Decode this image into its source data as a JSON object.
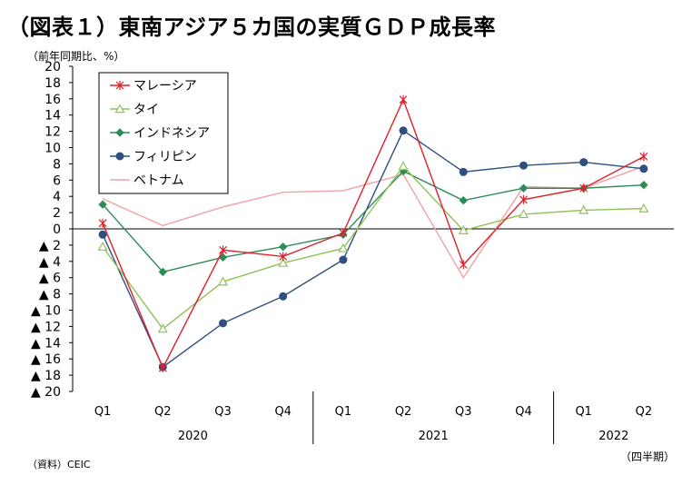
{
  "title": "（図表１）東南アジア５カ国の実質ＧＤＰ成長率",
  "unit_label": "（前年同期比、%）",
  "source": "（資料）CEIC",
  "period_label": "（四半期）",
  "chart_data": {
    "type": "line",
    "categories": [
      "Q1",
      "Q2",
      "Q3",
      "Q4",
      "Q1",
      "Q2",
      "Q3",
      "Q4",
      "Q1",
      "Q2"
    ],
    "years": [
      {
        "label": "2020",
        "start": 0,
        "end": 3
      },
      {
        "label": "2021",
        "start": 4,
        "end": 7
      },
      {
        "label": "2022",
        "start": 8,
        "end": 9
      }
    ],
    "ylim": [
      -20,
      20
    ],
    "yticks": [
      20,
      18,
      16,
      14,
      12,
      10,
      8,
      6,
      4,
      2,
      0,
      -2,
      -4,
      -6,
      -8,
      -10,
      -12,
      -14,
      -16,
      -18,
      -20
    ],
    "ytick_labels": [
      "20",
      "18",
      "16",
      "14",
      "12",
      "10",
      "8",
      "6",
      "4",
      "2",
      "0",
      "▲ 2",
      "▲ 4",
      "▲ 6",
      "▲ 8",
      "▲ 10",
      "▲ 12",
      "▲ 14",
      "▲ 16",
      "▲ 18",
      "▲ 20"
    ],
    "legend_position": "top-left",
    "series": [
      {
        "name": "マレーシア",
        "color": "#e0202a",
        "marker": "star",
        "values": [
          0.7,
          -17.1,
          -2.6,
          -3.4,
          -0.5,
          15.9,
          -4.4,
          3.6,
          5.0,
          8.9
        ]
      },
      {
        "name": "タイ",
        "color": "#8fc25a",
        "marker": "triangle-open",
        "values": [
          -2.2,
          -12.3,
          -6.5,
          -4.2,
          -2.4,
          7.7,
          -0.2,
          1.8,
          2.3,
          2.5
        ]
      },
      {
        "name": "インドネシア",
        "color": "#2e8b57",
        "marker": "diamond",
        "values": [
          3.0,
          -5.3,
          -3.5,
          -2.2,
          -0.7,
          7.1,
          3.5,
          5.0,
          5.0,
          5.4
        ]
      },
      {
        "name": "フィリピン",
        "color": "#2f4f7f",
        "marker": "circle",
        "values": [
          -0.7,
          -17.0,
          -11.6,
          -8.3,
          -3.8,
          12.1,
          7.0,
          7.8,
          8.2,
          7.4
        ]
      },
      {
        "name": "ベトナム",
        "color": "#f4a0a6",
        "marker": "none",
        "values": [
          3.7,
          0.4,
          2.7,
          4.5,
          4.7,
          6.7,
          -6.0,
          5.2,
          5.0,
          7.7
        ]
      }
    ]
  }
}
